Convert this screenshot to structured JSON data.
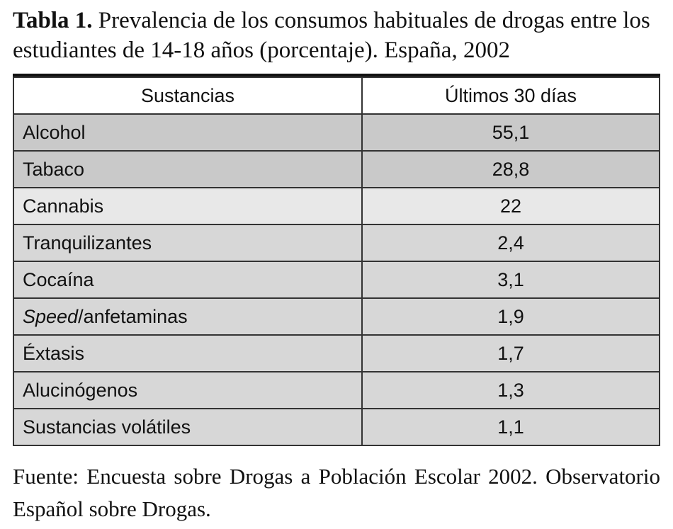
{
  "header": {
    "label": "Tabla 1.",
    "title": "Prevalencia de los consumos habituales de drogas entre los estudiantes de 14-18 años (porcentaje). España, 2002"
  },
  "table": {
    "columns": [
      "Sustancias",
      "Últimos 30 días"
    ],
    "rows": [
      {
        "substance": "Alcohol",
        "value": "55,1"
      },
      {
        "substance": "Tabaco",
        "value": "28,8"
      },
      {
        "substance": "Cannabis",
        "value": "22"
      },
      {
        "substance": "Tranquilizantes",
        "value": "2,4"
      },
      {
        "substance": "Cocaína",
        "value": "3,1"
      },
      {
        "substance_italic": "Speed",
        "substance": "/anfetaminas",
        "value": "1,9"
      },
      {
        "substance": "Éxtasis",
        "value": "1,7"
      },
      {
        "substance": "Alucinógenos",
        "value": "1,3"
      },
      {
        "substance": "Sustancias volátiles",
        "value": "1,1"
      }
    ]
  },
  "footer": {
    "source": "Fuente: Encuesta sobre Drogas a Población Escolar 2002. Observatorio Español sobre Drogas."
  }
}
